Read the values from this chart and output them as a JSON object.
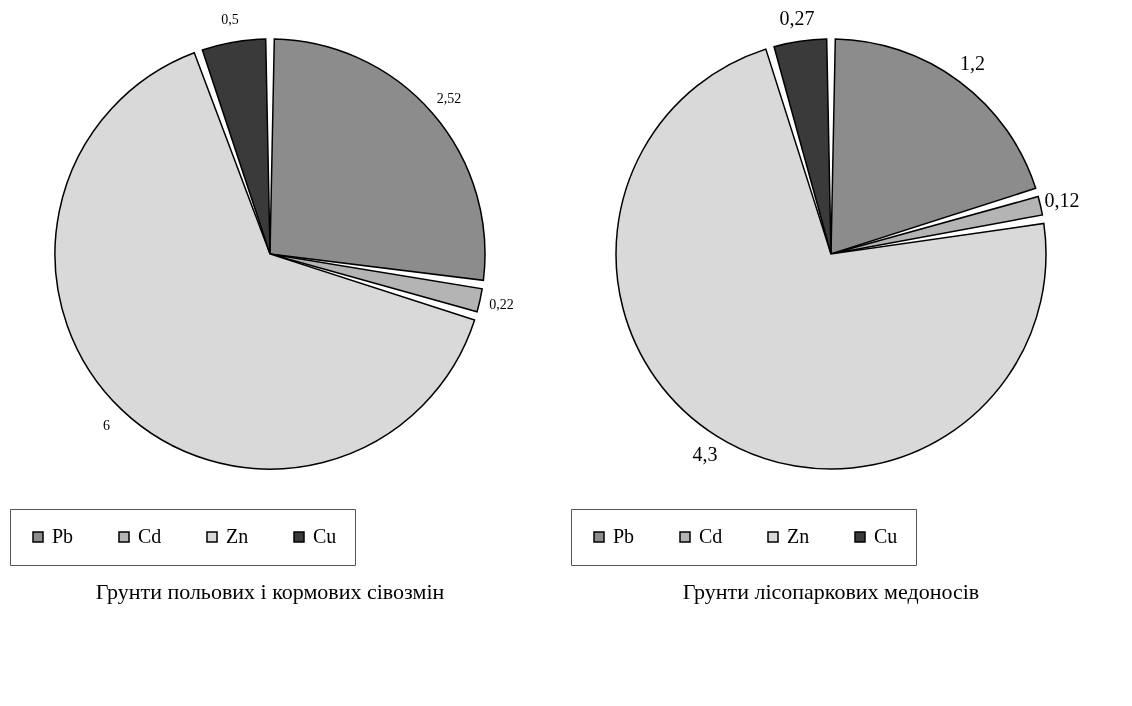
{
  "chart_data": [
    {
      "type": "pie",
      "title": "Грунти польових і кормових сівозмін",
      "categories": [
        "Pb",
        "Cd",
        "Zn",
        "Cu"
      ],
      "values": [
        2.52,
        0.22,
        6,
        0.5
      ],
      "value_labels": [
        "2,52",
        "0,22",
        "6",
        "0,5"
      ],
      "colors": [
        "#8c8c8c",
        "#b4b4b4",
        "#d9d9d9",
        "#3a3a3a"
      ],
      "legend": "bottom"
    },
    {
      "type": "pie",
      "title": "Грунти лісопаркових медоносів",
      "categories": [
        "Pb",
        "Cd",
        "Zn",
        "Cu"
      ],
      "values": [
        1.2,
        0.12,
        4.3,
        0.27
      ],
      "value_labels": [
        "1,2",
        "0,12",
        "4,3",
        "0,27"
      ],
      "colors": [
        "#8c8c8c",
        "#b4b4b4",
        "#d9d9d9",
        "#3a3a3a"
      ],
      "legend": "bottom"
    }
  ]
}
